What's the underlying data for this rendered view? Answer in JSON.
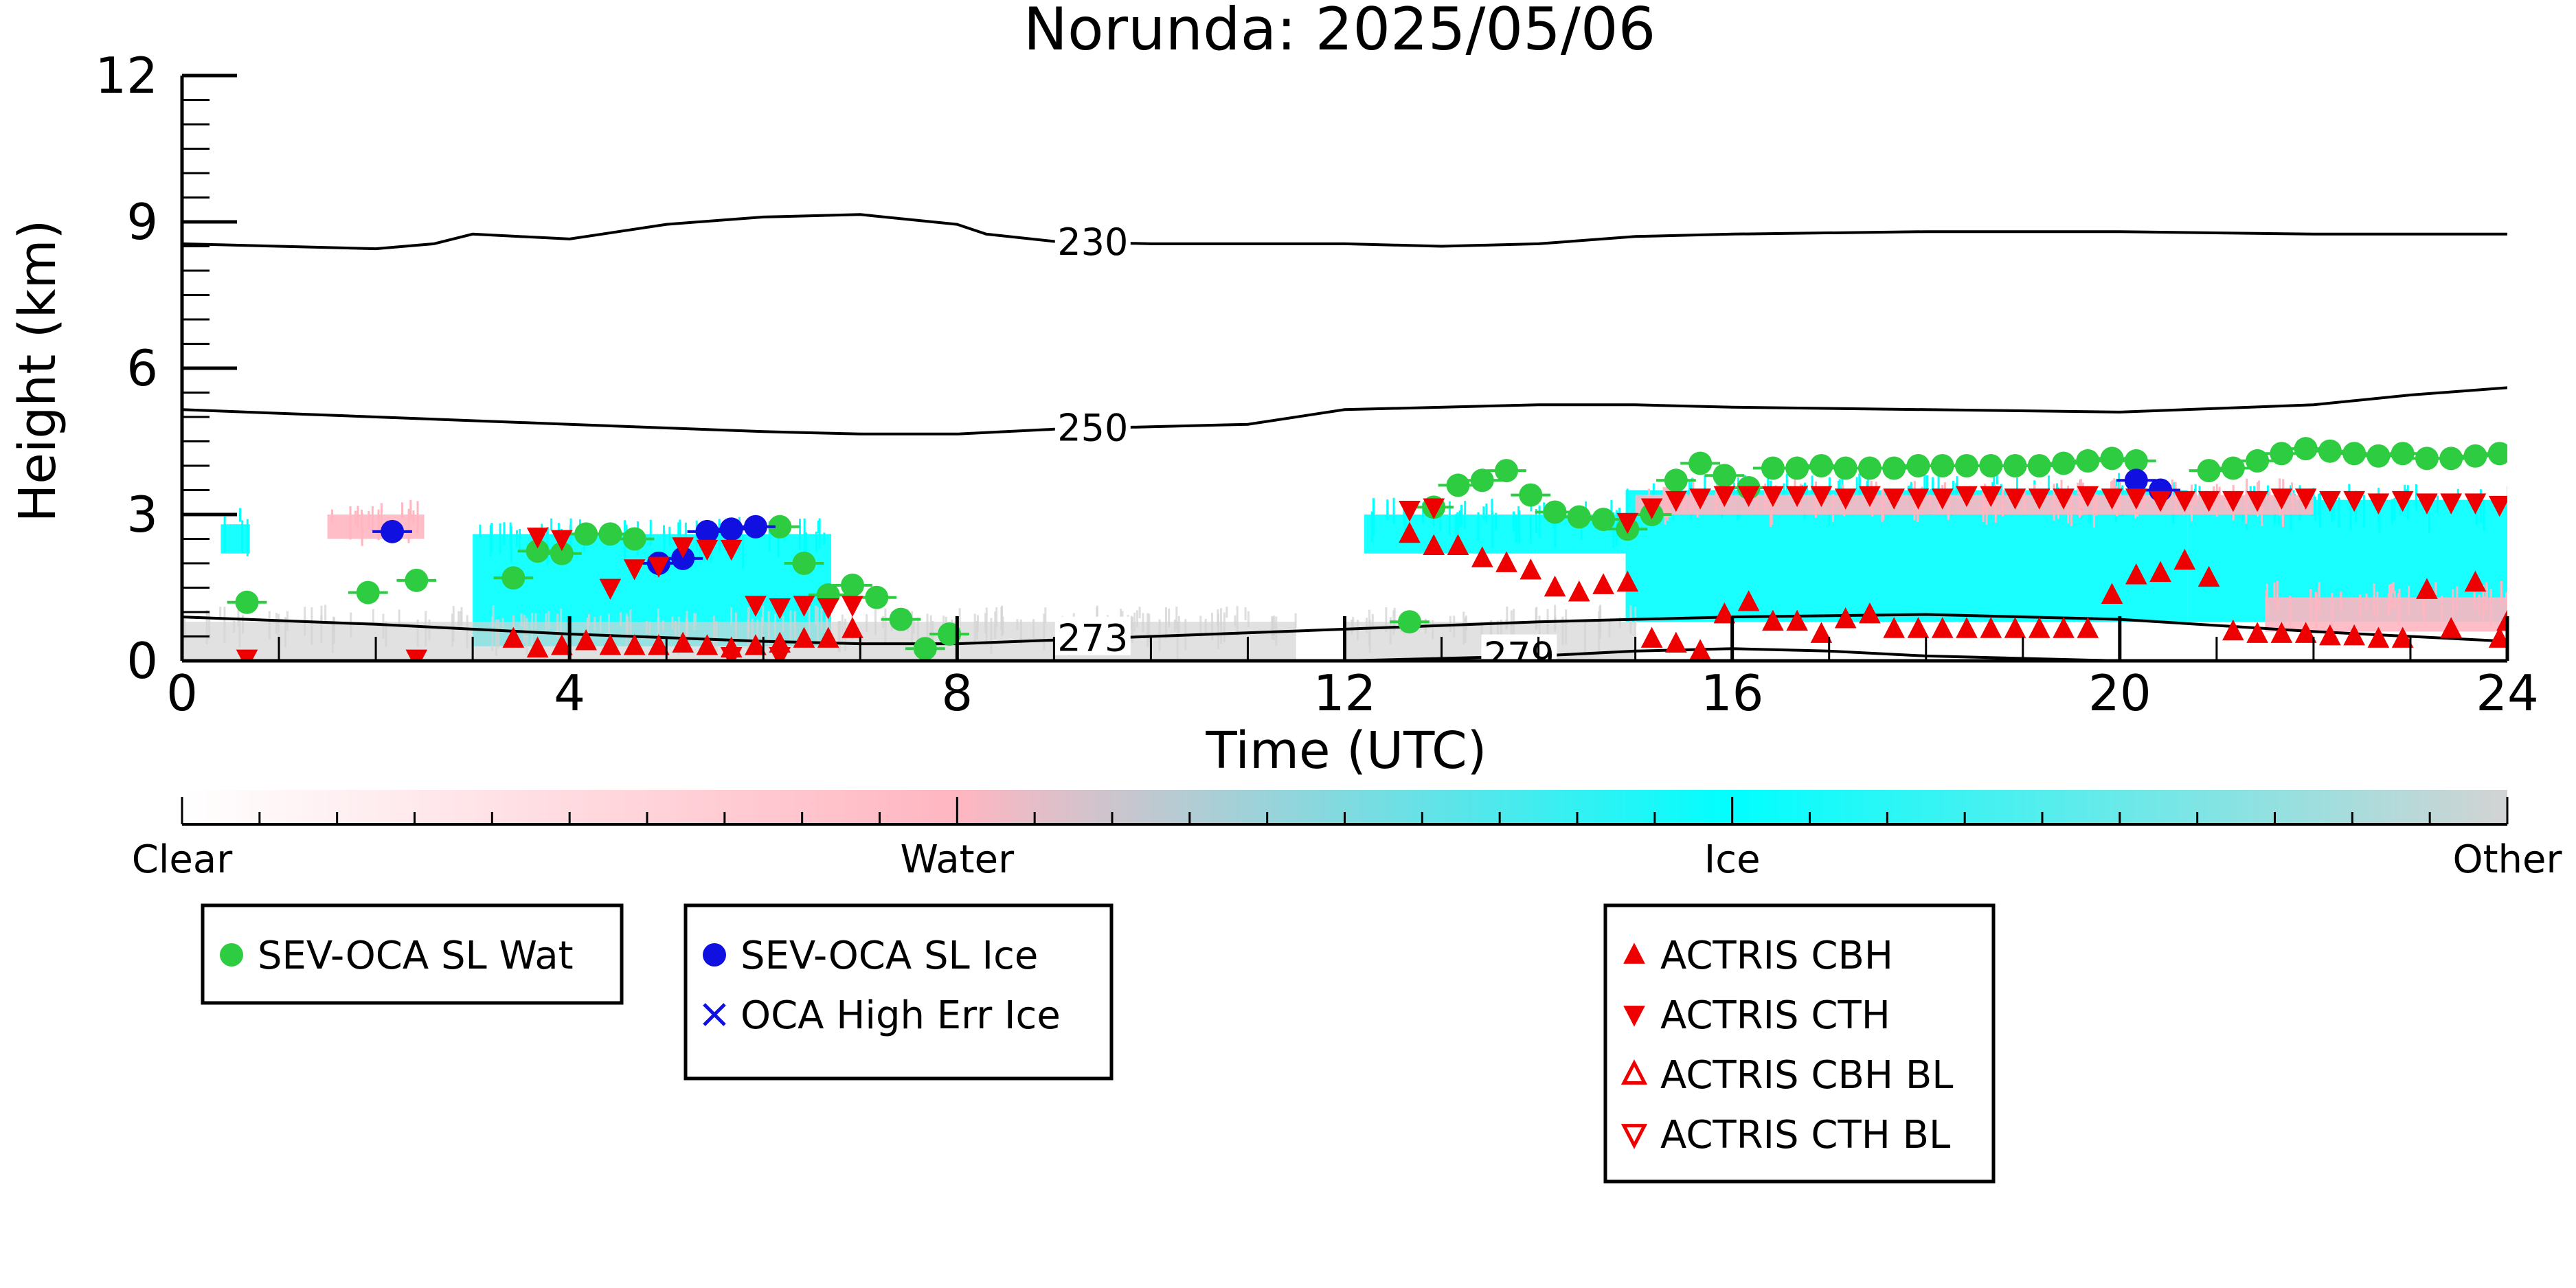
{
  "chart_data": {
    "type": "scatter",
    "title": "Norunda: 2025/05/06",
    "xlabel": "Time (UTC)",
    "ylabel": "Height (km)",
    "xlim": [
      0,
      24
    ],
    "ylim": [
      0,
      12
    ],
    "x_ticks": [
      0,
      4,
      8,
      12,
      16,
      20,
      24
    ],
    "y_ticks": [
      0,
      3,
      6,
      9,
      12
    ],
    "colorbar": {
      "labels": [
        "Clear",
        "Water",
        "Ice",
        "Other"
      ],
      "colors": [
        "#ffffff",
        "#ffb6c1",
        "#00ffff",
        "#d3d3d3"
      ]
    },
    "contours": [
      {
        "label": "230",
        "label_at": 9.4,
        "points": [
          [
            0,
            8.55
          ],
          [
            1,
            8.5
          ],
          [
            2,
            8.45
          ],
          [
            2.6,
            8.55
          ],
          [
            3,
            8.75
          ],
          [
            4,
            8.65
          ],
          [
            5,
            8.95
          ],
          [
            6,
            9.1
          ],
          [
            7,
            9.15
          ],
          [
            8,
            8.95
          ],
          [
            8.3,
            8.75
          ],
          [
            9,
            8.6
          ],
          [
            10,
            8.55
          ],
          [
            11,
            8.55
          ],
          [
            12,
            8.55
          ],
          [
            13,
            8.5
          ],
          [
            14,
            8.55
          ],
          [
            15,
            8.7
          ],
          [
            16,
            8.75
          ],
          [
            18,
            8.8
          ],
          [
            20,
            8.8
          ],
          [
            22,
            8.75
          ],
          [
            24,
            8.75
          ]
        ]
      },
      {
        "label": "250",
        "label_at": 9.4,
        "points": [
          [
            0,
            5.15
          ],
          [
            2,
            5.0
          ],
          [
            4,
            4.85
          ],
          [
            6,
            4.7
          ],
          [
            7,
            4.65
          ],
          [
            8,
            4.65
          ],
          [
            9,
            4.75
          ],
          [
            10,
            4.8
          ],
          [
            11,
            4.85
          ],
          [
            12,
            5.15
          ],
          [
            14,
            5.25
          ],
          [
            15,
            5.25
          ],
          [
            16,
            5.2
          ],
          [
            18,
            5.15
          ],
          [
            20,
            5.1
          ],
          [
            22,
            5.25
          ],
          [
            23,
            5.45
          ],
          [
            24,
            5.6
          ]
        ]
      },
      {
        "label": "273",
        "label_at": 9.4,
        "points": [
          [
            0,
            0.9
          ],
          [
            2,
            0.75
          ],
          [
            4,
            0.55
          ],
          [
            6,
            0.4
          ],
          [
            7,
            0.35
          ],
          [
            8,
            0.35
          ],
          [
            10,
            0.5
          ],
          [
            12,
            0.65
          ],
          [
            14,
            0.8
          ],
          [
            16,
            0.9
          ],
          [
            18,
            0.95
          ],
          [
            20,
            0.85
          ],
          [
            22,
            0.6
          ],
          [
            24,
            0.4
          ]
        ]
      },
      {
        "label": "279",
        "label_at": 13.8,
        "points": [
          [
            12,
            0.0
          ],
          [
            13,
            0.05
          ],
          [
            14,
            0.1
          ],
          [
            15,
            0.2
          ],
          [
            16,
            0.25
          ],
          [
            17,
            0.2
          ],
          [
            18,
            0.1
          ],
          [
            19,
            0.05
          ],
          [
            20,
            0.0
          ]
        ]
      }
    ],
    "cloud_regions": [
      {
        "phase": "Ice",
        "color": "#00ffff",
        "x": [
          3.0,
          6.7
        ],
        "y": [
          0.3,
          2.6
        ]
      },
      {
        "phase": "Ice",
        "color": "#00ffff",
        "x": [
          0.4,
          0.7
        ],
        "y": [
          2.2,
          2.8
        ]
      },
      {
        "phase": "Ice",
        "color": "#00ffff",
        "x": [
          12.2,
          14.9
        ],
        "y": [
          2.2,
          3.0
        ]
      },
      {
        "phase": "Ice",
        "color": "#00ffff",
        "x": [
          14.9,
          20.7
        ],
        "y": [
          0.8,
          3.5
        ]
      },
      {
        "phase": "Ice",
        "color": "#00ffff",
        "x": [
          20.7,
          24.0
        ],
        "y": [
          0.8,
          3.3
        ]
      },
      {
        "phase": "Water",
        "color": "#ffb6c1",
        "x": [
          1.5,
          2.5
        ],
        "y": [
          2.5,
          3.0
        ]
      },
      {
        "phase": "Water",
        "color": "#ffb6c1",
        "x": [
          15.0,
          22.0
        ],
        "y": [
          3.0,
          3.4
        ]
      },
      {
        "phase": "Water",
        "color": "#ffb6c1",
        "x": [
          21.5,
          24.0
        ],
        "y": [
          0.6,
          1.3
        ]
      },
      {
        "phase": "Other",
        "color": "#d3d3d3",
        "x": [
          0.0,
          11.5
        ],
        "y": [
          0.0,
          0.8
        ]
      },
      {
        "phase": "Other",
        "color": "#d3d3d3",
        "x": [
          12.0,
          15.0
        ],
        "y": [
          0.0,
          0.8
        ]
      }
    ],
    "legends": [
      {
        "entries": [
          {
            "label": "SEV-OCA SL Wat",
            "marker": "circle",
            "color": "#2ecc40"
          }
        ]
      },
      {
        "entries": [
          {
            "label": "SEV-OCA SL Ice",
            "marker": "circle",
            "color": "#1010e0"
          },
          {
            "label": "OCA High Err Ice",
            "marker": "x",
            "color": "#1010e0"
          }
        ]
      },
      {
        "entries": [
          {
            "label": "ACTRIS CBH",
            "marker": "triangle-up",
            "color": "#ee0000"
          },
          {
            "label": "ACTRIS CTH",
            "marker": "triangle-down",
            "color": "#ee0000"
          },
          {
            "label": "ACTRIS CBH BL",
            "marker": "triangle-up-open",
            "color": "#ee0000"
          },
          {
            "label": "ACTRIS CTH BL",
            "marker": "triangle-down-open",
            "color": "#ee0000"
          }
        ]
      }
    ],
    "series": [
      {
        "name": "SEV-OCA SL Wat",
        "marker": "circle",
        "color": "#2ecc40",
        "points": [
          [
            0.67,
            1.2
          ],
          [
            1.92,
            1.4
          ],
          [
            2.42,
            1.65
          ],
          [
            3.42,
            1.7
          ],
          [
            3.67,
            2.25
          ],
          [
            3.92,
            2.2
          ],
          [
            4.17,
            2.6
          ],
          [
            4.42,
            2.6
          ],
          [
            4.67,
            2.5
          ],
          [
            6.17,
            2.75
          ],
          [
            6.42,
            2.0
          ],
          [
            6.67,
            1.35
          ],
          [
            6.92,
            1.55
          ],
          [
            7.17,
            1.3
          ],
          [
            7.42,
            0.85
          ],
          [
            7.67,
            0.25
          ],
          [
            7.92,
            0.55
          ],
          [
            12.67,
            0.8
          ],
          [
            12.92,
            3.15
          ],
          [
            13.17,
            3.6
          ],
          [
            13.42,
            3.7
          ],
          [
            13.67,
            3.9
          ],
          [
            13.92,
            3.4
          ],
          [
            14.17,
            3.05
          ],
          [
            14.42,
            2.95
          ],
          [
            14.67,
            2.9
          ],
          [
            14.92,
            2.7
          ],
          [
            15.17,
            3.0
          ],
          [
            15.42,
            3.7
          ],
          [
            15.67,
            4.05
          ],
          [
            15.92,
            3.8
          ],
          [
            16.17,
            3.55
          ],
          [
            16.42,
            3.95
          ],
          [
            16.67,
            3.95
          ],
          [
            16.92,
            4.0
          ],
          [
            17.17,
            3.95
          ],
          [
            17.42,
            3.95
          ],
          [
            17.67,
            3.95
          ],
          [
            17.92,
            4.0
          ],
          [
            18.17,
            4.0
          ],
          [
            18.42,
            4.0
          ],
          [
            18.67,
            4.0
          ],
          [
            18.92,
            4.0
          ],
          [
            19.17,
            4.0
          ],
          [
            19.42,
            4.05
          ],
          [
            19.67,
            4.1
          ],
          [
            19.92,
            4.15
          ],
          [
            20.17,
            4.1
          ],
          [
            20.92,
            3.9
          ],
          [
            21.17,
            3.95
          ],
          [
            21.42,
            4.1
          ],
          [
            21.67,
            4.25
          ],
          [
            21.92,
            4.35
          ],
          [
            22.17,
            4.3
          ],
          [
            22.42,
            4.25
          ],
          [
            22.67,
            4.2
          ],
          [
            22.92,
            4.25
          ],
          [
            23.17,
            4.15
          ],
          [
            23.42,
            4.15
          ],
          [
            23.67,
            4.2
          ],
          [
            23.92,
            4.25
          ]
        ]
      },
      {
        "name": "SEV-OCA SL Ice",
        "marker": "circle",
        "color": "#1010e0",
        "points": [
          [
            2.17,
            2.65
          ],
          [
            4.92,
            2.0
          ],
          [
            5.17,
            2.1
          ],
          [
            5.42,
            2.65
          ],
          [
            5.67,
            2.7
          ],
          [
            5.92,
            2.75
          ],
          [
            20.17,
            3.7
          ],
          [
            20.42,
            3.5
          ]
        ]
      },
      {
        "name": "ACTRIS CBH",
        "marker": "triangle-up",
        "color": "#ee0000",
        "points": [
          [
            3.42,
            0.45
          ],
          [
            3.67,
            0.25
          ],
          [
            3.92,
            0.3
          ],
          [
            4.17,
            0.4
          ],
          [
            4.42,
            0.3
          ],
          [
            4.67,
            0.3
          ],
          [
            4.92,
            0.3
          ],
          [
            5.17,
            0.35
          ],
          [
            5.42,
            0.3
          ],
          [
            5.67,
            0.25
          ],
          [
            5.92,
            0.3
          ],
          [
            6.17,
            0.35
          ],
          [
            6.42,
            0.45
          ],
          [
            6.67,
            0.45
          ],
          [
            6.92,
            0.65
          ],
          [
            12.67,
            2.6
          ],
          [
            12.92,
            2.35
          ],
          [
            13.17,
            2.35
          ],
          [
            13.42,
            2.1
          ],
          [
            13.67,
            2.0
          ],
          [
            13.92,
            1.85
          ],
          [
            14.17,
            1.5
          ],
          [
            14.42,
            1.4
          ],
          [
            14.67,
            1.55
          ],
          [
            14.92,
            1.6
          ],
          [
            15.17,
            0.45
          ],
          [
            15.42,
            0.35
          ],
          [
            15.67,
            0.2
          ],
          [
            15.92,
            0.95
          ],
          [
            16.17,
            1.2
          ],
          [
            16.42,
            0.8
          ],
          [
            16.67,
            0.8
          ],
          [
            16.92,
            0.55
          ],
          [
            17.17,
            0.85
          ],
          [
            17.42,
            0.95
          ],
          [
            17.67,
            0.65
          ],
          [
            17.92,
            0.65
          ],
          [
            18.17,
            0.65
          ],
          [
            18.42,
            0.65
          ],
          [
            18.67,
            0.65
          ],
          [
            18.92,
            0.65
          ],
          [
            19.17,
            0.65
          ],
          [
            19.42,
            0.65
          ],
          [
            19.67,
            0.65
          ],
          [
            19.92,
            1.35
          ],
          [
            20.17,
            1.75
          ],
          [
            20.42,
            1.8
          ],
          [
            20.67,
            2.05
          ],
          [
            20.92,
            1.7
          ],
          [
            21.17,
            0.6
          ],
          [
            21.42,
            0.55
          ],
          [
            21.67,
            0.55
          ],
          [
            21.92,
            0.55
          ],
          [
            22.17,
            0.5
          ],
          [
            22.42,
            0.5
          ],
          [
            22.67,
            0.45
          ],
          [
            22.92,
            0.45
          ],
          [
            23.17,
            1.45
          ],
          [
            23.42,
            0.65
          ],
          [
            23.67,
            1.6
          ],
          [
            23.92,
            0.45
          ],
          [
            24.0,
            0.8
          ]
        ]
      },
      {
        "name": "ACTRIS CTH",
        "marker": "triangle-down",
        "color": "#ee0000",
        "points": [
          [
            0.67,
            0.05
          ],
          [
            2.42,
            0.05
          ],
          [
            3.67,
            2.55
          ],
          [
            3.92,
            2.5
          ],
          [
            4.42,
            1.5
          ],
          [
            4.67,
            1.9
          ],
          [
            4.92,
            1.95
          ],
          [
            5.17,
            2.35
          ],
          [
            5.42,
            2.3
          ],
          [
            5.67,
            2.3
          ],
          [
            5.92,
            1.15
          ],
          [
            6.17,
            1.1
          ],
          [
            6.42,
            1.15
          ],
          [
            6.67,
            1.1
          ],
          [
            6.92,
            1.15
          ],
          [
            5.67,
            0.1
          ],
          [
            6.17,
            0.1
          ],
          [
            12.67,
            3.1
          ],
          [
            12.92,
            3.15
          ],
          [
            14.92,
            2.85
          ],
          [
            15.17,
            3.15
          ],
          [
            15.42,
            3.3
          ],
          [
            15.67,
            3.35
          ],
          [
            15.92,
            3.4
          ],
          [
            16.17,
            3.4
          ],
          [
            16.42,
            3.4
          ],
          [
            16.67,
            3.4
          ],
          [
            16.92,
            3.4
          ],
          [
            17.17,
            3.35
          ],
          [
            17.42,
            3.4
          ],
          [
            17.67,
            3.35
          ],
          [
            17.92,
            3.35
          ],
          [
            18.17,
            3.35
          ],
          [
            18.42,
            3.4
          ],
          [
            18.67,
            3.4
          ],
          [
            18.92,
            3.35
          ],
          [
            19.17,
            3.35
          ],
          [
            19.42,
            3.35
          ],
          [
            19.67,
            3.4
          ],
          [
            19.92,
            3.35
          ],
          [
            20.17,
            3.35
          ],
          [
            20.42,
            3.3
          ],
          [
            20.67,
            3.3
          ],
          [
            20.92,
            3.3
          ],
          [
            21.17,
            3.3
          ],
          [
            21.42,
            3.3
          ],
          [
            21.67,
            3.35
          ],
          [
            21.92,
            3.35
          ],
          [
            22.17,
            3.3
          ],
          [
            22.42,
            3.3
          ],
          [
            22.67,
            3.25
          ],
          [
            22.92,
            3.3
          ],
          [
            23.17,
            3.25
          ],
          [
            23.42,
            3.25
          ],
          [
            23.67,
            3.25
          ],
          [
            23.92,
            3.2
          ]
        ]
      }
    ]
  }
}
